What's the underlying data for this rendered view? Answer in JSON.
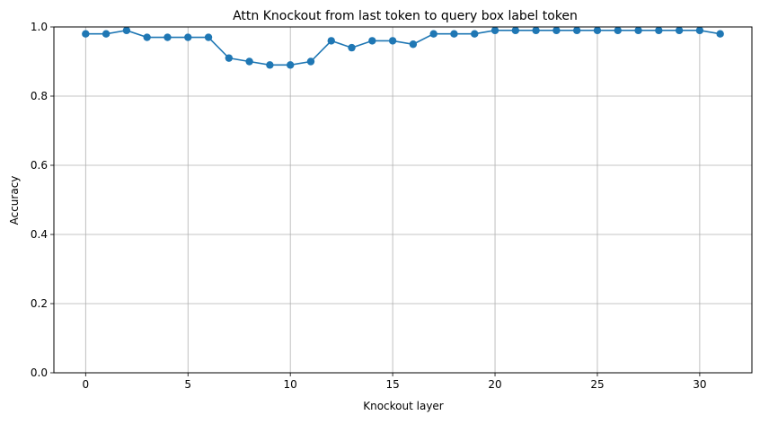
{
  "chart_data": {
    "type": "line",
    "title": "Attn Knockout from last token to query box label token",
    "xlabel": "Knockout layer",
    "ylabel": "Accuracy",
    "xlim": [
      -1.55,
      32.55
    ],
    "ylim": [
      0,
      1.0
    ],
    "xticks": [
      0,
      5,
      10,
      15,
      20,
      25,
      30
    ],
    "yticks": [
      0.0,
      0.2,
      0.4,
      0.6,
      0.8,
      1.0
    ],
    "xtick_labels": [
      "0",
      "5",
      "10",
      "15",
      "20",
      "25",
      "30"
    ],
    "ytick_labels": [
      "0.0",
      "0.2",
      "0.4",
      "0.6",
      "0.8",
      "1.0"
    ],
    "grid": true,
    "series": [
      {
        "color": "#1f77b4",
        "marker": "circle",
        "x": [
          0,
          1,
          2,
          3,
          4,
          5,
          6,
          7,
          8,
          9,
          10,
          11,
          12,
          13,
          14,
          15,
          16,
          17,
          18,
          19,
          20,
          21,
          22,
          23,
          24,
          25,
          26,
          27,
          28,
          29,
          30,
          31
        ],
        "values": [
          0.98,
          0.98,
          0.99,
          0.97,
          0.97,
          0.97,
          0.97,
          0.91,
          0.9,
          0.89,
          0.89,
          0.9,
          0.96,
          0.94,
          0.96,
          0.96,
          0.95,
          0.98,
          0.98,
          0.98,
          0.99,
          0.99,
          0.99,
          0.99,
          0.99,
          0.99,
          0.99,
          0.99,
          0.99,
          0.99,
          0.99,
          0.98
        ]
      }
    ]
  }
}
